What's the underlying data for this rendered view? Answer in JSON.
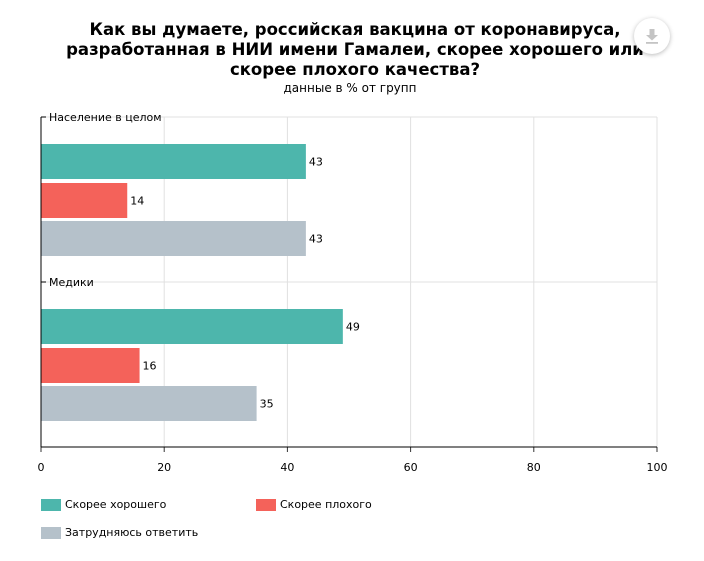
{
  "header": {
    "title_lines": [
      "Как вы думаете, российская вакцина от коронавируса,",
      "разработанная в НИИ имени Гамалеи, скорее хорошего или",
      "скорее плохого качества?"
    ],
    "subtitle": "данные в % от групп"
  },
  "toolbar": {
    "export_icon": "download-icon"
  },
  "chart_data": {
    "type": "bar",
    "orientation": "horizontal",
    "title": "Как вы думаете, российская вакцина от коронавируса, разработанная в НИИ имени Гамалеи, скорее хорошего или скорее плохого качества?",
    "subtitle": "данные в % от групп",
    "categories": [
      "Население в целом",
      "Медики"
    ],
    "series": [
      {
        "name": "Скорее хорошего",
        "values": [
          43,
          49
        ],
        "color": "#4db6ac"
      },
      {
        "name": "Скорее плохого",
        "values": [
          14,
          16
        ],
        "color": "#f4625a"
      },
      {
        "name": "Затрудняюсь ответить",
        "values": [
          43,
          35
        ],
        "color": "#b5c1ca"
      }
    ],
    "xlim": [
      0,
      100
    ],
    "ticks": [
      "0",
      "20",
      "40",
      "60",
      "80",
      "100"
    ],
    "grid": true,
    "legend_position": "bottom",
    "xlabel": "",
    "ylabel": ""
  }
}
